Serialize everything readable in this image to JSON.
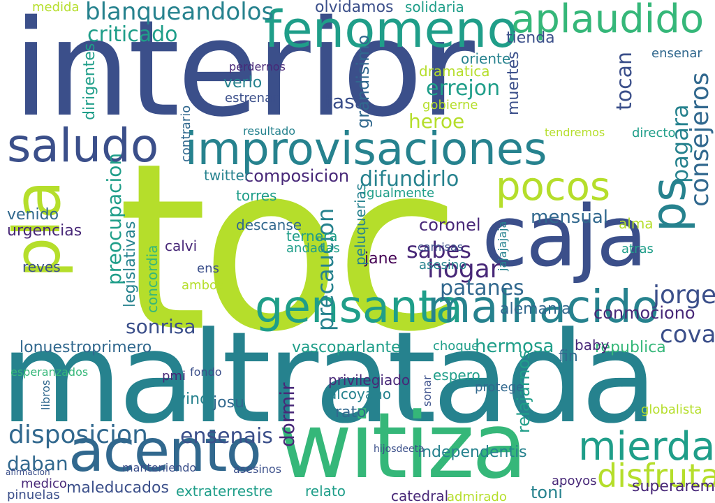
{
  "palette": {
    "navy": "#3b4f8a",
    "indigo": "#414487",
    "blue": "#31688e",
    "teal": "#26828e",
    "aqua": "#1f9e89",
    "green": "#35b779",
    "lime": "#6ece58",
    "yellowgreen": "#b5de2b",
    "purple": "#440154",
    "darkviolet": "#482878"
  },
  "words": [
    {
      "text": "toc",
      "color": "yellowgreen"
    },
    {
      "text": "interior",
      "color": "navy"
    },
    {
      "text": "maltratada",
      "color": "teal"
    },
    {
      "text": "caja",
      "color": "navy"
    },
    {
      "text": "witiza",
      "color": "green"
    },
    {
      "text": "pla",
      "color": "yellowgreen"
    },
    {
      "text": "gensanta",
      "color": "aqua"
    },
    {
      "text": "malnacido",
      "color": "teal"
    },
    {
      "text": "improvisaciones",
      "color": "teal"
    },
    {
      "text": "acento",
      "color": "blue"
    },
    {
      "text": "fenomeno",
      "color": "aqua"
    },
    {
      "text": "aplaudido",
      "color": "green"
    },
    {
      "text": "saludo",
      "color": "navy"
    },
    {
      "text": "pocos",
      "color": "yellowgreen"
    },
    {
      "text": "mierda",
      "color": "aqua"
    },
    {
      "text": "disfruta",
      "color": "yellowgreen"
    },
    {
      "text": "ps",
      "color": "teal"
    },
    {
      "text": "disposicion",
      "color": "blue"
    },
    {
      "text": "ensenais",
      "color": "navy"
    },
    {
      "text": "blanqueandolos",
      "color": "teal"
    },
    {
      "text": "criticado",
      "color": "aqua"
    },
    {
      "text": "consejeros",
      "color": "blue"
    },
    {
      "text": "pagara",
      "color": "teal"
    },
    {
      "text": "jorge",
      "color": "navy"
    },
    {
      "text": "cova",
      "color": "navy"
    },
    {
      "text": "hogar",
      "color": "darkviolet"
    },
    {
      "text": "sabes",
      "color": "darkviolet"
    },
    {
      "text": "patanes",
      "color": "blue"
    },
    {
      "text": "sonrisa",
      "color": "navy"
    },
    {
      "text": "hermosa",
      "color": "aqua"
    },
    {
      "text": "difundirlo",
      "color": "teal"
    },
    {
      "text": "composicion",
      "color": "darkviolet"
    },
    {
      "text": "precaucion",
      "color": "teal"
    },
    {
      "text": "preocupacion",
      "color": "aqua"
    },
    {
      "text": "tocan",
      "color": "navy"
    },
    {
      "text": "heroe",
      "color": "yellowgreen"
    },
    {
      "text": "errejon",
      "color": "aqua"
    },
    {
      "text": "tasa",
      "color": "navy"
    },
    {
      "text": "mensual",
      "color": "blue"
    },
    {
      "text": "coronel",
      "color": "darkviolet"
    },
    {
      "text": "jane",
      "color": "purple"
    },
    {
      "text": "alemania",
      "color": "blue"
    },
    {
      "text": "conmociono",
      "color": "darkviolet"
    },
    {
      "text": "republica",
      "color": "green"
    },
    {
      "text": "lonuestroprimero",
      "color": "blue"
    },
    {
      "text": "vascoparlante",
      "color": "aqua"
    },
    {
      "text": "maleducados",
      "color": "navy"
    },
    {
      "text": "extraterrestre",
      "color": "aqua"
    },
    {
      "text": "relato",
      "color": "aqua"
    },
    {
      "text": "catedral",
      "color": "darkviolet"
    },
    {
      "text": "admirado",
      "color": "yellowgreen"
    },
    {
      "text": "toni",
      "color": "teal"
    },
    {
      "text": "superaremos",
      "color": "darkviolet"
    },
    {
      "text": "daban",
      "color": "blue"
    },
    {
      "text": "medico",
      "color": "darkviolet"
    },
    {
      "text": "pinuelas",
      "color": "navy"
    },
    {
      "text": "dormir",
      "color": "darkviolet"
    },
    {
      "text": "independentis",
      "color": "teal"
    },
    {
      "text": "relajarnos",
      "color": "aqua"
    },
    {
      "text": "apoyos",
      "color": "darkviolet"
    },
    {
      "text": "globalista",
      "color": "yellowgreen"
    },
    {
      "text": "privilegiado",
      "color": "darkviolet"
    },
    {
      "text": "alcoyano",
      "color": "teal"
    },
    {
      "text": "espero",
      "color": "aqua"
    },
    {
      "text": "protege",
      "color": "blue"
    },
    {
      "text": "vino",
      "color": "teal"
    },
    {
      "text": "josu",
      "color": "blue"
    },
    {
      "text": "pmi",
      "color": "darkviolet"
    },
    {
      "text": "rato",
      "color": "blue"
    },
    {
      "text": "fin",
      "color": "blue"
    },
    {
      "text": "baby",
      "color": "darkviolet"
    },
    {
      "text": "choque",
      "color": "aqua"
    },
    {
      "text": "dramatica",
      "color": "yellowgreen"
    },
    {
      "text": "muertes",
      "color": "navy"
    },
    {
      "text": "gobierne",
      "color": "yellowgreen"
    },
    {
      "text": "grandisimo",
      "color": "blue"
    },
    {
      "text": "dirigentes",
      "color": "aqua"
    },
    {
      "text": "verlo",
      "color": "teal"
    },
    {
      "text": "estrenar",
      "color": "navy"
    },
    {
      "text": "contrario",
      "color": "blue"
    },
    {
      "text": "perdernos",
      "color": "darkviolet"
    },
    {
      "text": "oriente",
      "color": "teal"
    },
    {
      "text": "tienda",
      "color": "navy"
    },
    {
      "text": "ensenar",
      "color": "blue"
    },
    {
      "text": "olvidamos",
      "color": "navy"
    },
    {
      "text": "solidaria",
      "color": "aqua"
    },
    {
      "text": "medida",
      "color": "yellowgreen"
    },
    {
      "text": "urgencias",
      "color": "darkviolet"
    },
    {
      "text": "venido",
      "color": "blue"
    },
    {
      "text": "reves",
      "color": "navy"
    },
    {
      "text": "calvi",
      "color": "darkviolet"
    },
    {
      "text": "torres",
      "color": "aqua"
    },
    {
      "text": "ternera",
      "color": "aqua"
    },
    {
      "text": "andadas",
      "color": "aqua"
    },
    {
      "text": "asesino",
      "color": "teal"
    },
    {
      "text": "camisas",
      "color": "navy"
    },
    {
      "text": "peluquerias",
      "color": "teal"
    },
    {
      "text": "alma",
      "color": "yellowgreen"
    },
    {
      "text": "atras",
      "color": "aqua"
    },
    {
      "text": "twitter",
      "color": "teal"
    },
    {
      "text": "descanse",
      "color": "blue"
    },
    {
      "text": "legislativas",
      "color": "teal"
    },
    {
      "text": "concordia",
      "color": "green"
    },
    {
      "text": "ambos",
      "color": "yellowgreen"
    },
    {
      "text": "igualmente",
      "color": "aqua"
    },
    {
      "text": "tendremos",
      "color": "yellowgreen"
    },
    {
      "text": "directo",
      "color": "aqua"
    },
    {
      "text": "resultado",
      "color": "teal"
    },
    {
      "text": "esperanzados",
      "color": "green"
    },
    {
      "text": "sonar",
      "color": "navy"
    },
    {
      "text": "ensenais2",
      "color": "navy"
    },
    {
      "text": "asesinos",
      "color": "navy"
    },
    {
      "text": "manteniendo",
      "color": "navy"
    },
    {
      "text": "afirmacion",
      "color": "navy"
    },
    {
      "text": "jajajajaja",
      "color": "teal"
    },
    {
      "text": "ens",
      "color": "navy"
    },
    {
      "text": "hijosdeeta",
      "color": "navy"
    },
    {
      "text": "fondo",
      "color": "navy"
    },
    {
      "text": "libros",
      "color": "blue"
    }
  ]
}
